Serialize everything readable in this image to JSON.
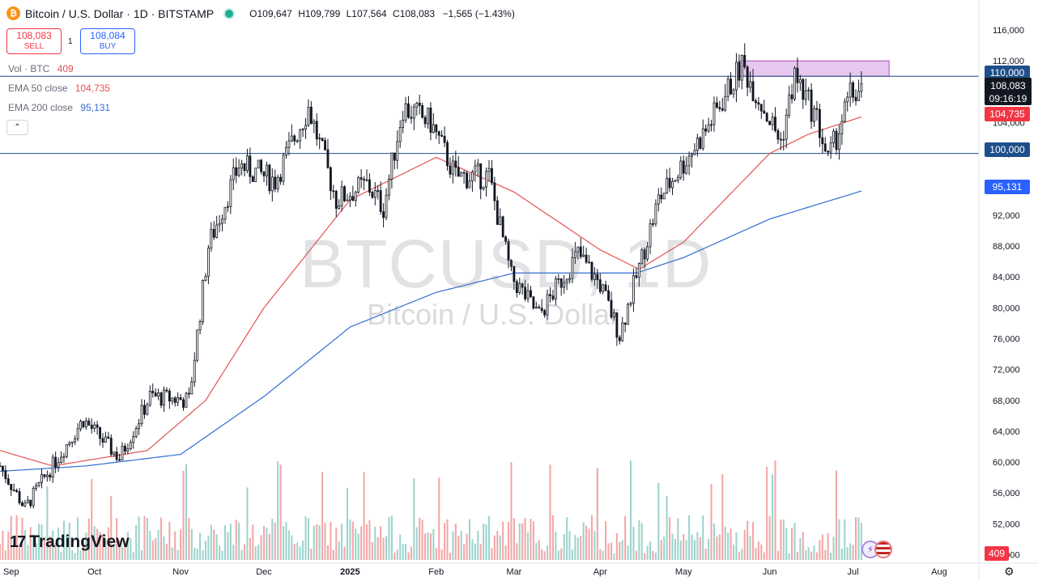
{
  "header": {
    "coin_glyph": "₿",
    "title": "Bitcoin / U.S. Dollar · 1D · BITSTAMP",
    "ohlc": {
      "o_label": "O",
      "o": "109,647",
      "h_label": "H",
      "h": "109,799",
      "l_label": "L",
      "l": "107,564",
      "c_label": "C",
      "c": "108,083",
      "change": "−1,565 (−1.43%)"
    }
  },
  "trade": {
    "sell_price": "108,083",
    "sell_label": "SELL",
    "spread": "1",
    "buy_price": "108,084",
    "buy_label": "BUY"
  },
  "legend": {
    "vol_label": "Vol · BTC",
    "vol_value": "409",
    "ema50_label": "EMA 50 close",
    "ema50_value": "104,735",
    "ema200_label": "EMA 200 close",
    "ema200_value": "95,131",
    "collapse_glyph": "⌃"
  },
  "watermark": {
    "symbol": "BTCUSD, 1D",
    "name": "Bitcoin / U.S. Dollar"
  },
  "branding": {
    "logo_mark": "17",
    "logo_text": "TradingView"
  },
  "price_scale": {
    "tag_110000": "110,000",
    "tag_last": "108,083",
    "countdown": "09:16:19",
    "tag_ema50": "104,735",
    "tag_100000": "100,000",
    "tag_ema200": "95,131",
    "tag_volume": "409"
  },
  "colors": {
    "up": "#131722",
    "down": "#131722",
    "ema50": "#e55353",
    "ema200": "#2f6fd1",
    "vol_up": "#9dd3cc",
    "vol_down": "#f2a7a7",
    "zone": "#e6c8ee",
    "zone_border": "#b04fbf",
    "level": "#1e4f8a",
    "last_tag": "#131722",
    "ema50_tag": "#f23645",
    "ema200_tag": "#2962ff",
    "level_tag": "#1e4f8a"
  },
  "icons": {
    "settings": "gear-icon",
    "live": "live-dot-icon",
    "collapse": "chevron-up-icon"
  },
  "chart_data": {
    "type": "candlestick",
    "title": "Bitcoin / U.S. Dollar · 1D · BITSTAMP",
    "y_ticks": [
      "48,000",
      "52,000",
      "56,000",
      "60,000",
      "64,000",
      "68,000",
      "72,000",
      "76,000",
      "80,000",
      "84,000",
      "88,000",
      "92,000",
      "96,000",
      "100,000",
      "104,000",
      "108,000",
      "112,000",
      "116,000"
    ],
    "x_ticks": [
      "Sep",
      "Oct",
      "Nov",
      "Dec",
      "2025",
      "Feb",
      "Mar",
      "Apr",
      "May",
      "Jun",
      "Jul",
      "Aug"
    ],
    "ylim": [
      47000,
      118000
    ],
    "xlim": [
      "2024-08-28",
      "2025-08-15"
    ],
    "resistance_zone": {
      "x_from": "2025-05-21",
      "x_to": "2025-07-14",
      "y_from": 110000,
      "y_to": 112000
    },
    "horizontal_levels": [
      110000,
      100000
    ],
    "close_path": [
      {
        "date": "2024-08-28",
        "close": 59500
      },
      {
        "date": "2024-09-06",
        "close": 54000
      },
      {
        "date": "2024-09-13",
        "close": 58000
      },
      {
        "date": "2024-09-27",
        "close": 65500
      },
      {
        "date": "2024-10-10",
        "close": 60500
      },
      {
        "date": "2024-10-21",
        "close": 68500
      },
      {
        "date": "2024-11-04",
        "close": 68000
      },
      {
        "date": "2024-11-11",
        "close": 88000
      },
      {
        "date": "2024-11-22",
        "close": 98500
      },
      {
        "date": "2024-12-05",
        "close": 96500
      },
      {
        "date": "2024-12-17",
        "close": 106000
      },
      {
        "date": "2024-12-27",
        "close": 94000
      },
      {
        "date": "2025-01-07",
        "close": 96000
      },
      {
        "date": "2025-01-13",
        "close": 93000
      },
      {
        "date": "2025-01-20",
        "close": 106000
      },
      {
        "date": "2025-01-30",
        "close": 104000
      },
      {
        "date": "2025-02-08",
        "close": 97000
      },
      {
        "date": "2025-02-20",
        "close": 97000
      },
      {
        "date": "2025-02-28",
        "close": 84000
      },
      {
        "date": "2025-03-10",
        "close": 79000
      },
      {
        "date": "2025-03-24",
        "close": 87000
      },
      {
        "date": "2025-04-01",
        "close": 83000
      },
      {
        "date": "2025-04-08",
        "close": 76500
      },
      {
        "date": "2025-04-22",
        "close": 94000
      },
      {
        "date": "2025-05-09",
        "close": 103000
      },
      {
        "date": "2025-05-22",
        "close": 111500
      },
      {
        "date": "2025-06-05",
        "close": 101500
      },
      {
        "date": "2025-06-10",
        "close": 110000
      },
      {
        "date": "2025-06-18",
        "close": 104500
      },
      {
        "date": "2025-06-22",
        "close": 99000
      },
      {
        "date": "2025-06-30",
        "close": 107500
      },
      {
        "date": "2025-07-04",
        "close": 108083
      }
    ],
    "ema50_path": [
      {
        "date": "2024-08-28",
        "value": 61500
      },
      {
        "date": "2024-09-16",
        "value": 59500
      },
      {
        "date": "2024-10-20",
        "value": 61500
      },
      {
        "date": "2024-11-10",
        "value": 68000
      },
      {
        "date": "2024-12-01",
        "value": 80000
      },
      {
        "date": "2025-01-01",
        "value": 94000
      },
      {
        "date": "2025-02-01",
        "value": 99500
      },
      {
        "date": "2025-03-01",
        "value": 95000
      },
      {
        "date": "2025-04-01",
        "value": 87500
      },
      {
        "date": "2025-04-15",
        "value": 85000
      },
      {
        "date": "2025-05-01",
        "value": 88500
      },
      {
        "date": "2025-06-01",
        "value": 100000
      },
      {
        "date": "2025-06-15",
        "value": 102500
      },
      {
        "date": "2025-07-04",
        "value": 104735
      }
    ],
    "ema200_path": [
      {
        "date": "2024-08-28",
        "value": 58800
      },
      {
        "date": "2024-09-28",
        "value": 59500
      },
      {
        "date": "2024-11-01",
        "value": 61000
      },
      {
        "date": "2024-12-01",
        "value": 68500
      },
      {
        "date": "2025-01-01",
        "value": 77500
      },
      {
        "date": "2025-02-01",
        "value": 82000
      },
      {
        "date": "2025-03-01",
        "value": 84500
      },
      {
        "date": "2025-03-28",
        "value": 84500
      },
      {
        "date": "2025-04-14",
        "value": 84500
      },
      {
        "date": "2025-05-01",
        "value": 86500
      },
      {
        "date": "2025-06-01",
        "value": 91500
      },
      {
        "date": "2025-07-04",
        "value": 95131
      }
    ],
    "annotations": [
      "Vol · BTC 409",
      "EMA 50 close 104,735",
      "EMA 200 close 95,131"
    ]
  }
}
